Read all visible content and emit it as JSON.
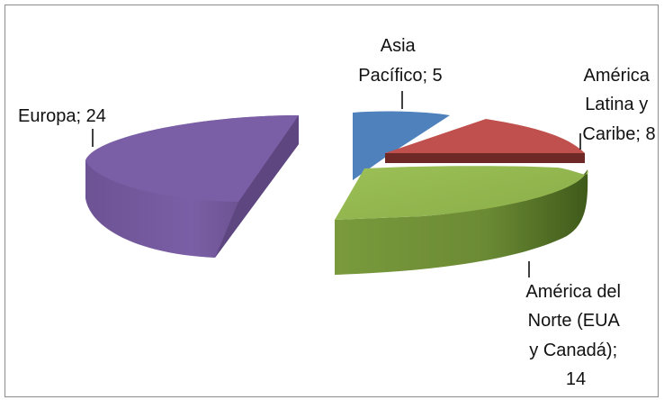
{
  "chart_data": {
    "type": "pie",
    "style": "3d-exploded",
    "title": "",
    "categories": [
      "Europa",
      "Asia Pacífico",
      "América Latina y Caribe",
      "América del Norte (EUA y Canadá)"
    ],
    "values": [
      24,
      5,
      8,
      14
    ],
    "colors": [
      "#7b5fa6",
      "#4f81bd",
      "#c0504d",
      "#8db04a"
    ],
    "labels": {
      "europa": [
        "Europa; 24"
      ],
      "asia": [
        "Asia",
        "Pacífico; 5"
      ],
      "latina": [
        "América",
        "Latina y",
        "Caribe; 8"
      ],
      "norte": [
        "América del",
        "Norte (EUA",
        "y Canadá);",
        "14"
      ]
    }
  }
}
